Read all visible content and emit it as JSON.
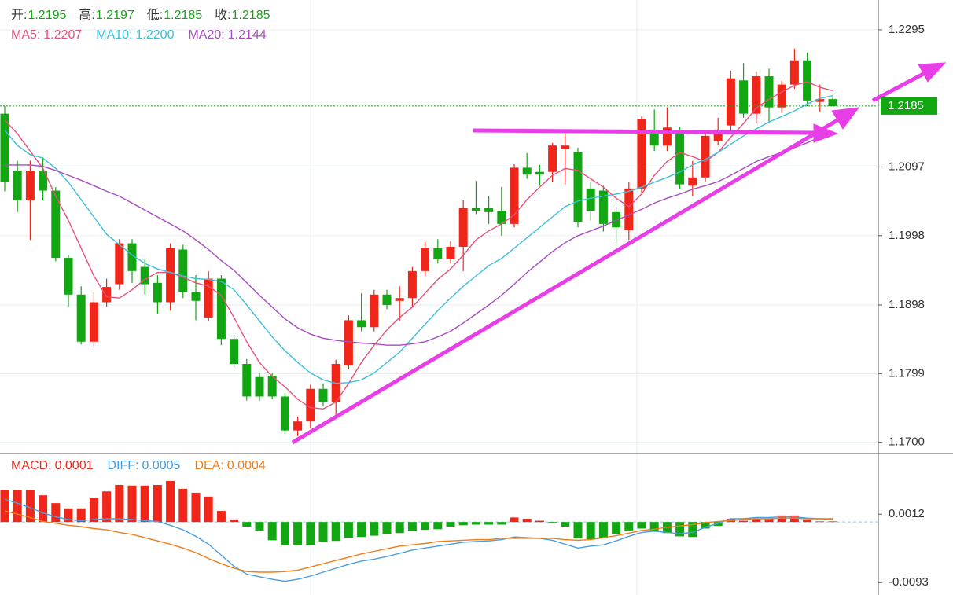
{
  "chart_data": [
    {
      "type": "candlestick",
      "header": [
        {
          "label": "开:",
          "value": 1.2195
        },
        {
          "label": "高:",
          "value": 1.2197
        },
        {
          "label": "低:",
          "value": 1.2185
        },
        {
          "label": "收:",
          "value": 1.2185
        }
      ],
      "up_color": "#f0261b",
      "down_color": "#13a613",
      "ylim": [
        1.1686,
        1.2338
      ],
      "yticks": [
        1.2295,
        1.2097,
        1.1998,
        1.1898,
        1.1799,
        {
          "value": 1.17,
          "label": "1.1700"
        }
      ],
      "grid": true,
      "last_price": 1.2185,
      "candles": {
        "open": [
          1.2174,
          1.2092,
          1.2049,
          1.2092,
          1.2063,
          1.1966,
          1.1913,
          1.1845,
          1.1902,
          1.1928,
          1.1987,
          1.1953,
          1.193,
          1.1902,
          1.1978,
          1.1917,
          1.188,
          1.1936,
          1.1849,
          1.1813,
          1.1794,
          1.1796,
          1.1766,
          1.1717,
          1.173,
          1.1777,
          1.1758,
          1.1811,
          1.1876,
          1.1866,
          1.1913,
          1.1904,
          1.1908,
          1.1947,
          1.198,
          1.1964,
          1.1982,
          1.2038,
          1.2038,
          1.2034,
          1.2015,
          1.2096,
          1.209,
          1.209,
          1.2123,
          1.2119,
          1.2066,
          1.2063,
          1.2032,
          1.2006,
          1.2066,
          1.2151,
          1.2128,
          1.2148,
          1.207,
          1.2082,
          1.2134,
          1.2157,
          1.2222,
          1.2174,
          1.2228,
          1.2183,
          1.2216,
          1.2251,
          1.2191,
          1.2195
        ],
        "high": [
          1.2185,
          1.2106,
          1.2106,
          1.2111,
          1.2068,
          1.197,
          1.1925,
          1.1916,
          1.1936,
          1.1993,
          1.1993,
          1.1965,
          1.1941,
          1.1987,
          1.1985,
          1.1941,
          1.1947,
          1.1941,
          1.1855,
          1.182,
          1.18,
          1.18,
          1.1771,
          1.1737,
          1.1783,
          1.1785,
          1.1819,
          1.1883,
          1.1915,
          1.192,
          1.192,
          1.1925,
          1.1953,
          1.1989,
          1.1993,
          1.199,
          1.2049,
          1.2077,
          1.2055,
          1.2068,
          1.2101,
          1.2117,
          1.21,
          1.2132,
          1.2145,
          1.2125,
          1.2075,
          1.207,
          1.204,
          1.2075,
          1.217,
          1.218,
          1.2183,
          1.2155,
          1.2106,
          1.215,
          1.2168,
          1.2236,
          1.2247,
          1.2235,
          1.2239,
          1.2222,
          1.2268,
          1.2262,
          1.2216,
          1.2197
        ],
        "low": [
          1.2062,
          1.2032,
          1.1992,
          1.2049,
          1.1961,
          1.1896,
          1.1841,
          1.1836,
          1.1896,
          1.192,
          1.193,
          1.1913,
          1.1885,
          1.189,
          1.1908,
          1.1876,
          1.1875,
          1.184,
          1.1808,
          1.176,
          1.176,
          1.1762,
          1.1712,
          1.1709,
          1.172,
          1.1752,
          1.1737,
          1.1805,
          1.186,
          1.186,
          1.1892,
          1.1875,
          1.1896,
          1.194,
          1.1958,
          1.1958,
          1.1947,
          1.2029,
          1.2015,
          1.1998,
          1.201,
          1.208,
          1.207,
          1.2075,
          1.2072,
          1.201,
          1.202,
          1.2004,
          1.1987,
          1.1992,
          1.206,
          1.212,
          1.212,
          1.2065,
          1.2055,
          1.2075,
          1.2128,
          1.215,
          1.2168,
          1.216,
          1.2162,
          1.2175,
          1.221,
          1.2185,
          1.2177,
          1.2185
        ],
        "close": [
          1.2075,
          1.2049,
          1.2092,
          1.2063,
          1.1966,
          1.1913,
          1.1845,
          1.1902,
          1.1924,
          1.1987,
          1.1947,
          1.1928,
          1.1902,
          1.198,
          1.1917,
          1.1904,
          1.1936,
          1.1849,
          1.1813,
          1.1766,
          1.1766,
          1.1766,
          1.1717,
          1.173,
          1.1777,
          1.1758,
          1.1813,
          1.1876,
          1.1866,
          1.1913,
          1.1898,
          1.1908,
          1.1947,
          1.198,
          1.1964,
          1.1982,
          1.2038,
          1.2034,
          1.2032,
          1.2015,
          1.2096,
          1.2086,
          1.2086,
          1.2128,
          1.2128,
          1.2018,
          1.2034,
          1.2015,
          1.201,
          1.2066,
          1.2166,
          1.2128,
          1.2154,
          1.2072,
          1.2082,
          1.2142,
          1.2151,
          1.2225,
          1.2174,
          1.2228,
          1.2183,
          1.2216,
          1.2251,
          1.2193,
          1.2195,
          1.2185
        ]
      },
      "series": [
        {
          "name": "MA5:",
          "color": "#e8507a",
          "last": 1.2207,
          "values": [
            1.2165,
            1.2145,
            1.212,
            1.2095,
            1.2055,
            1.202,
            1.198,
            1.194,
            1.191,
            1.1908,
            1.192,
            1.1935,
            1.1945,
            1.1945,
            1.1938,
            1.193,
            1.1925,
            1.1912,
            1.188,
            1.1845,
            1.1815,
            1.1795,
            1.178,
            1.1762,
            1.175,
            1.1748,
            1.1758,
            1.1785,
            1.1815,
            1.184,
            1.1862,
            1.188,
            1.1895,
            1.1915,
            1.1935,
            1.195,
            1.197,
            1.1992,
            1.2005,
            1.2015,
            1.2028,
            1.205,
            1.2068,
            1.2085,
            1.2095,
            1.2092,
            1.208,
            1.2068,
            1.2052,
            1.204,
            1.2058,
            1.2085,
            1.2105,
            1.2118,
            1.2112,
            1.2105,
            1.2118,
            1.214,
            1.216,
            1.2182,
            1.2195,
            1.2205,
            1.2215,
            1.222,
            1.2212,
            1.2207
          ]
        },
        {
          "name": "MA10:",
          "color": "#3dbfd9",
          "last": {
            "value": 1.22,
            "label": "1.2200"
          },
          "values": [
            1.215,
            1.2128,
            1.2115,
            1.211,
            1.2095,
            1.2075,
            1.205,
            1.2025,
            1.2,
            1.1985,
            1.197,
            1.1958,
            1.195,
            1.1945,
            1.194,
            1.1936,
            1.1935,
            1.1932,
            1.192,
            1.1898,
            1.1875,
            1.1852,
            1.1832,
            1.1815,
            1.18,
            1.179,
            1.1785,
            1.1786,
            1.179,
            1.18,
            1.1815,
            1.183,
            1.185,
            1.187,
            1.189,
            1.1908,
            1.1925,
            1.194,
            1.1955,
            1.1965,
            1.198,
            1.1995,
            1.201,
            1.2025,
            1.204,
            1.2048,
            1.2052,
            1.2055,
            1.2058,
            1.2062,
            1.2068,
            1.2075,
            1.2082,
            1.209,
            1.21,
            1.2108,
            1.2118,
            1.213,
            1.2142,
            1.2152,
            1.2162,
            1.217,
            1.2178,
            1.2188,
            1.2196,
            1.22
          ]
        },
        {
          "name": "MA20:",
          "color": "#a84cc0",
          "last": 1.2144,
          "values": [
            1.21,
            1.21,
            1.21,
            1.2098,
            1.2092,
            1.2085,
            1.2078,
            1.207,
            1.2062,
            1.2055,
            1.2045,
            1.2035,
            1.2025,
            1.2015,
            1.2005,
            1.1992,
            1.1978,
            1.1962,
            1.1948,
            1.193,
            1.1912,
            1.1895,
            1.1878,
            1.1865,
            1.1856,
            1.185,
            1.1847,
            1.1845,
            1.1843,
            1.1842,
            1.184,
            1.184,
            1.1842,
            1.1845,
            1.1852,
            1.186,
            1.1872,
            1.1885,
            1.1898,
            1.1912,
            1.1928,
            1.1945,
            1.196,
            1.1975,
            1.1988,
            1.1998,
            1.2005,
            1.2012,
            1.202,
            1.2028,
            1.2036,
            1.2045,
            1.2052,
            1.2058,
            1.2065,
            1.207,
            1.2076,
            1.2085,
            1.2095,
            1.2105,
            1.2112,
            1.2118,
            1.2125,
            1.2132,
            1.214,
            1.2144
          ]
        }
      ]
    },
    {
      "type": "macd",
      "ylim": [
        -0.0112,
        0.0104
      ],
      "yticks": [
        0.0012,
        -0.0093
      ],
      "histogram": {
        "name": "MACD:",
        "color": "#f0261b",
        "up_color": "#f0261b",
        "down_color": "#13a613",
        "last": 0.0001,
        "values": [
          0.0049,
          0.0049,
          0.0049,
          0.0041,
          0.0029,
          0.0021,
          0.0021,
          0.0037,
          0.0047,
          0.0057,
          0.0056,
          0.0056,
          0.0057,
          0.0063,
          0.0051,
          0.0045,
          0.0039,
          0.0017,
          0.0004,
          -0.0007,
          -0.0013,
          -0.0028,
          -0.0036,
          -0.0036,
          -0.0035,
          -0.0031,
          -0.0029,
          -0.0024,
          -0.0023,
          -0.0021,
          -0.0018,
          -0.0017,
          -0.0014,
          -0.0012,
          -0.0011,
          -0.0007,
          -0.0005,
          -0.0004,
          -0.0004,
          -0.0004,
          0.0007,
          0.0005,
          0.0002,
          -0.0001,
          -0.0007,
          -0.0025,
          -0.0027,
          -0.0024,
          -0.0019,
          -0.0013,
          -0.001,
          -0.0013,
          -0.0017,
          -0.0022,
          -0.0023,
          -0.001,
          -0.0006,
          0.0005,
          0.0002,
          0.0005,
          0.0005,
          0.001,
          0.001,
          0.0004,
          0.0001,
          0.0001
        ]
      },
      "series": [
        {
          "name": "DIFF:",
          "color": "#4a9de0",
          "last": 0.0005,
          "values": [
            0.0035,
            0.0029,
            0.0022,
            0.0014,
            0.0008,
            0.0004,
            0.0002,
            0.0004,
            0.0005,
            0.0005,
            0.0004,
            0.0002,
            0.0001,
            -0.0005,
            -0.0012,
            -0.0022,
            -0.0034,
            -0.0051,
            -0.0068,
            -0.008,
            -0.0084,
            -0.0088,
            -0.0091,
            -0.0088,
            -0.0083,
            -0.0077,
            -0.0071,
            -0.0065,
            -0.006,
            -0.0057,
            -0.0053,
            -0.0048,
            -0.0043,
            -0.004,
            -0.0037,
            -0.0034,
            -0.0031,
            -0.003,
            -0.0029,
            -0.0027,
            -0.0023,
            -0.0024,
            -0.0025,
            -0.0028,
            -0.0034,
            -0.004,
            -0.0037,
            -0.0035,
            -0.0029,
            -0.0022,
            -0.0016,
            -0.0014,
            -0.0016,
            -0.0018,
            -0.0016,
            -0.0008,
            -0.0002,
            0.0005,
            0.0005,
            0.0007,
            0.0007,
            0.0008,
            0.0008,
            0.0006,
            0.0005,
            0.0005
          ]
        },
        {
          "name": "DEA:",
          "color": "#f07d1a",
          "last": 0.0004,
          "values": [
            0.0017,
            0.0012,
            0.0007,
            0.0001,
            -0.0002,
            -0.0005,
            -0.0007,
            -0.001,
            -0.0012,
            -0.0016,
            -0.0019,
            -0.0024,
            -0.0029,
            -0.0034,
            -0.004,
            -0.0047,
            -0.0056,
            -0.0064,
            -0.0071,
            -0.0076,
            -0.0077,
            -0.0077,
            -0.0076,
            -0.0074,
            -0.0069,
            -0.0064,
            -0.0059,
            -0.0054,
            -0.0049,
            -0.0045,
            -0.0041,
            -0.0037,
            -0.0035,
            -0.0033,
            -0.003,
            -0.0029,
            -0.0028,
            -0.0027,
            -0.0027,
            -0.0025,
            -0.0025,
            -0.0025,
            -0.0025,
            -0.0025,
            -0.0027,
            -0.0028,
            -0.0027,
            -0.0024,
            -0.0021,
            -0.0017,
            -0.0013,
            -0.0011,
            -0.0008,
            -0.0006,
            -0.0004,
            -0.0001,
            0.0001,
            0.0002,
            0.0004,
            0.0005,
            0.0005,
            0.0006,
            0.0006,
            0.0005,
            0.0005,
            0.0004
          ]
        }
      ]
    }
  ]
}
